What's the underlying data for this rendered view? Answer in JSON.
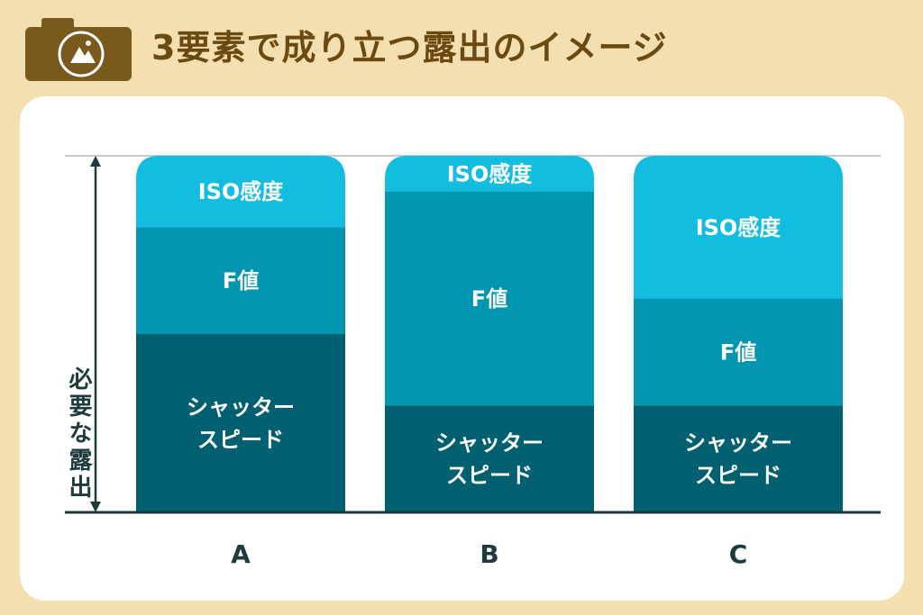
{
  "header": {
    "title": "3要素で成り立つ露出のイメージ",
    "logo_icon": "camera-logo-icon"
  },
  "chart_data": {
    "type": "bar",
    "stacked": true,
    "title": "3要素で成り立つ露出のイメージ",
    "ylabel": "必要な露出",
    "categories": [
      "A",
      "B",
      "C"
    ],
    "ylim": [
      0,
      100
    ],
    "series": [
      {
        "name": "シャッタースピード",
        "label_lines": [
          "シャッター",
          "スピード"
        ],
        "color": "#01606f",
        "values": [
          50,
          30,
          30
        ]
      },
      {
        "name": "F値",
        "label_lines": [
          "F値"
        ],
        "color": "#0095b0",
        "values": [
          30,
          60,
          30
        ]
      },
      {
        "name": "ISO感度",
        "label_lines": [
          "ISO感度"
        ],
        "color": "#13bde0",
        "values": [
          20,
          10,
          40
        ]
      }
    ],
    "colors": {
      "axis": "#1d3a3d",
      "top_line": "#b9b9b9",
      "brand": "#6b4a12"
    }
  }
}
